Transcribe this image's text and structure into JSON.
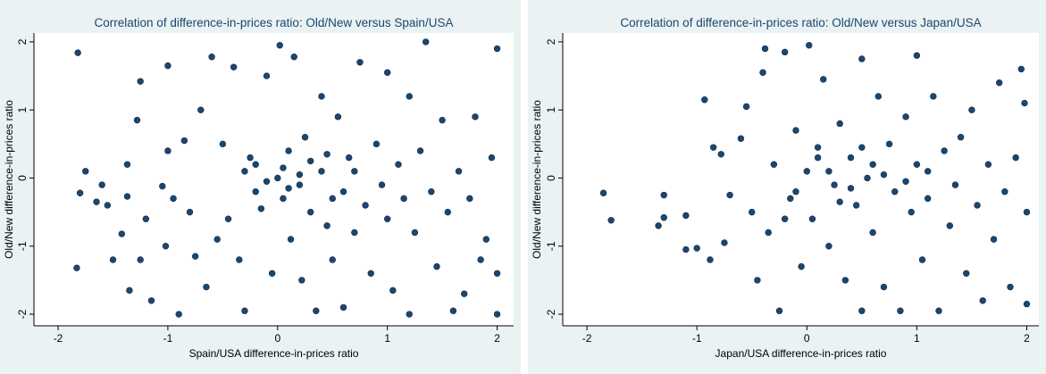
{
  "chart_data": [
    {
      "type": "scatter",
      "title": "Correlation of difference-in-prices ratio: Old/New versus Spain/USA",
      "xlabel": "Spain/USA difference-in-prices ratio",
      "ylabel": "Old/New difference-in-prices ratio",
      "color": "#1a476f",
      "xlim": [
        -2.22,
        2.15
      ],
      "ylim": [
        -2.17,
        2.13
      ],
      "xticks": [
        -2,
        -1,
        0,
        1,
        2
      ],
      "yticks": [
        -2,
        -1,
        0,
        1,
        2
      ],
      "x": [
        -1.82,
        -1.83,
        -1.8,
        -1.75,
        -1.65,
        -1.6,
        -1.55,
        -1.5,
        -1.42,
        -1.37,
        -1.37,
        -1.35,
        -1.28,
        -1.25,
        -1.25,
        -1.2,
        -1.15,
        -1.05,
        -1.02,
        -1.0,
        -1.0,
        -0.95,
        -0.9,
        -0.85,
        -0.8,
        -0.75,
        -0.7,
        -0.65,
        -0.6,
        -0.55,
        -0.5,
        -0.45,
        -0.4,
        -0.35,
        -0.3,
        -0.25,
        -0.2,
        -0.15,
        -0.1,
        -0.05,
        0,
        0.02,
        0.05,
        0.1,
        0.12,
        0.15,
        0.2,
        0.22,
        0.25,
        0.3,
        0.35,
        0.4,
        0.4,
        0.45,
        0.5,
        0.55,
        0.6,
        0.6,
        0.65,
        0.7,
        0.75,
        0.8,
        0.85,
        0.9,
        0.95,
        1.0,
        1.0,
        1.05,
        1.1,
        1.15,
        1.2,
        1.2,
        1.25,
        1.3,
        1.35,
        1.4,
        1.45,
        1.5,
        1.55,
        1.6,
        1.65,
        1.7,
        1.75,
        1.8,
        1.85,
        1.9,
        1.95,
        2.0,
        2.0,
        2.0,
        -0.1,
        0.05,
        0.2,
        -0.3,
        0.3,
        0.5,
        0.1,
        -0.2,
        0.7,
        0.45
      ],
      "values": [
        1.84,
        -1.32,
        -0.22,
        0.1,
        -0.35,
        -0.1,
        -0.4,
        -1.2,
        -0.82,
        0.2,
        -0.27,
        -1.65,
        0.85,
        1.42,
        -1.2,
        -0.6,
        -1.8,
        -0.12,
        -1.0,
        1.65,
        0.4,
        -0.3,
        -2.0,
        0.55,
        -0.5,
        -1.15,
        1.0,
        -1.6,
        1.78,
        -0.9,
        0.5,
        -0.6,
        1.63,
        -1.2,
        -1.95,
        0.3,
        -0.2,
        -0.45,
        1.5,
        -1.4,
        0.0,
        1.95,
        -0.3,
        0.4,
        -0.9,
        1.78,
        -0.1,
        -1.5,
        0.6,
        -0.5,
        -1.95,
        1.2,
        0.1,
        -0.7,
        -1.2,
        0.9,
        -0.2,
        -1.9,
        0.3,
        -0.8,
        1.7,
        -0.4,
        -1.4,
        0.5,
        -0.1,
        1.55,
        -0.6,
        -1.65,
        0.2,
        -0.3,
        1.2,
        -2.0,
        -0.8,
        0.4,
        2.0,
        -0.2,
        -1.3,
        0.85,
        -0.5,
        -1.95,
        0.1,
        -1.7,
        -0.3,
        0.9,
        -1.2,
        -0.9,
        0.3,
        1.9,
        -2.0,
        -1.4,
        -0.05,
        0.15,
        0.05,
        0.1,
        0.25,
        -0.3,
        -0.15,
        0.2,
        0.1,
        0.35
      ]
    },
    {
      "type": "scatter",
      "title": "Correlation of difference-in-prices ratio: Old/New versus Japan/USA",
      "xlabel": "Japan/USA difference-in-prices ratio",
      "ylabel": "Old/New difference-in-prices ratio",
      "color": "#1a476f",
      "xlim": [
        -2.22,
        2.11
      ],
      "ylim": [
        -2.17,
        2.13
      ],
      "xticks": [
        -2,
        -1,
        0,
        1,
        2
      ],
      "yticks": [
        -2,
        -1,
        0,
        1,
        2
      ],
      "x": [
        -1.85,
        -1.78,
        -1.35,
        -1.3,
        -1.3,
        -1.1,
        -1.1,
        -1.0,
        -0.93,
        -0.88,
        -0.85,
        -0.78,
        -0.75,
        -0.7,
        -0.6,
        -0.55,
        -0.5,
        -0.45,
        -0.4,
        -0.38,
        -0.35,
        -0.3,
        -0.25,
        -0.2,
        -0.15,
        -0.1,
        -0.05,
        0,
        0.02,
        0.05,
        0.1,
        0.15,
        0.2,
        0.25,
        0.3,
        0.35,
        0.4,
        0.45,
        0.5,
        0.5,
        0.55,
        0.6,
        0.65,
        0.7,
        0.75,
        0.8,
        0.85,
        0.9,
        0.95,
        1.0,
        1.0,
        1.05,
        1.1,
        1.15,
        1.2,
        1.25,
        1.3,
        1.35,
        1.4,
        1.45,
        1.5,
        1.55,
        1.6,
        1.65,
        1.7,
        1.75,
        1.8,
        1.85,
        1.9,
        1.95,
        2.0,
        2.0,
        1.98,
        0.2,
        0.4,
        0.6,
        -0.1,
        0.3,
        0.7,
        0.1,
        0.5,
        0.9,
        1.1,
        -0.2
      ],
      "values": [
        -0.22,
        -0.62,
        -0.7,
        -0.25,
        -0.58,
        -0.55,
        -1.05,
        -1.03,
        1.15,
        -1.2,
        0.45,
        0.35,
        -0.95,
        -0.25,
        0.58,
        1.05,
        -0.5,
        -1.5,
        1.55,
        1.9,
        -0.8,
        0.2,
        -1.95,
        1.85,
        -0.3,
        0.7,
        -1.3,
        0.1,
        1.95,
        -0.6,
        0.45,
        1.45,
        -1.0,
        -0.1,
        0.8,
        -1.5,
        0.3,
        -0.4,
        1.75,
        -1.95,
        0.0,
        -0.8,
        1.2,
        -1.6,
        0.5,
        -0.2,
        -1.95,
        0.9,
        -0.5,
        1.8,
        0.2,
        -1.2,
        -0.3,
        1.2,
        -1.95,
        0.4,
        -0.7,
        -0.1,
        0.6,
        -1.4,
        1.0,
        -0.4,
        -1.8,
        0.2,
        -0.9,
        1.4,
        -0.2,
        -1.6,
        0.3,
        1.6,
        -1.85,
        -0.5,
        1.1,
        0.1,
        -0.15,
        0.2,
        -0.2,
        -0.35,
        0.05,
        0.3,
        0.45,
        -0.05,
        0.1,
        -0.6
      ]
    }
  ]
}
